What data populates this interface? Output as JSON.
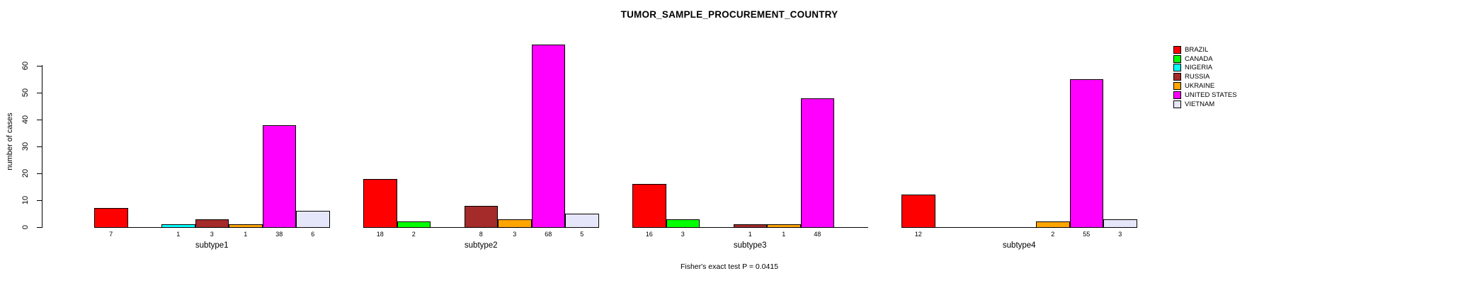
{
  "chart_data": {
    "type": "bar",
    "title": "TUMOR_SAMPLE_PROCUREMENT_COUNTRY",
    "ylabel": "number of cases",
    "xlabel": "",
    "footnote": "Fisher's exact test P = 0.0415",
    "categories": [
      "subtype1",
      "subtype2",
      "subtype3",
      "subtype4"
    ],
    "series": [
      {
        "name": "BRAZIL",
        "color": "#FF0000",
        "values": [
          7,
          18,
          16,
          12
        ]
      },
      {
        "name": "CANADA",
        "color": "#00FF00",
        "values": [
          0,
          2,
          3,
          0
        ]
      },
      {
        "name": "NIGERIA",
        "color": "#00FFFF",
        "values": [
          1,
          0,
          0,
          0
        ]
      },
      {
        "name": "RUSSIA",
        "color": "#A52A2A",
        "values": [
          3,
          8,
          1,
          0
        ]
      },
      {
        "name": "UKRAINE",
        "color": "#FFA500",
        "values": [
          1,
          3,
          1,
          2
        ]
      },
      {
        "name": "UNITED STATES",
        "color": "#FF00FF",
        "values": [
          38,
          68,
          48,
          55
        ]
      },
      {
        "name": "VIETNAM",
        "color": "#E6E6FA",
        "values": [
          6,
          5,
          0,
          3
        ]
      }
    ],
    "yticks": [
      0,
      10,
      20,
      30,
      40,
      50,
      60
    ],
    "ylim": [
      0,
      68
    ],
    "grid": false,
    "legend_position": "right",
    "bar_value_labels": "shown under each nonzero bar",
    "zero_bars": "drawn as flat baseline segments, no label"
  }
}
